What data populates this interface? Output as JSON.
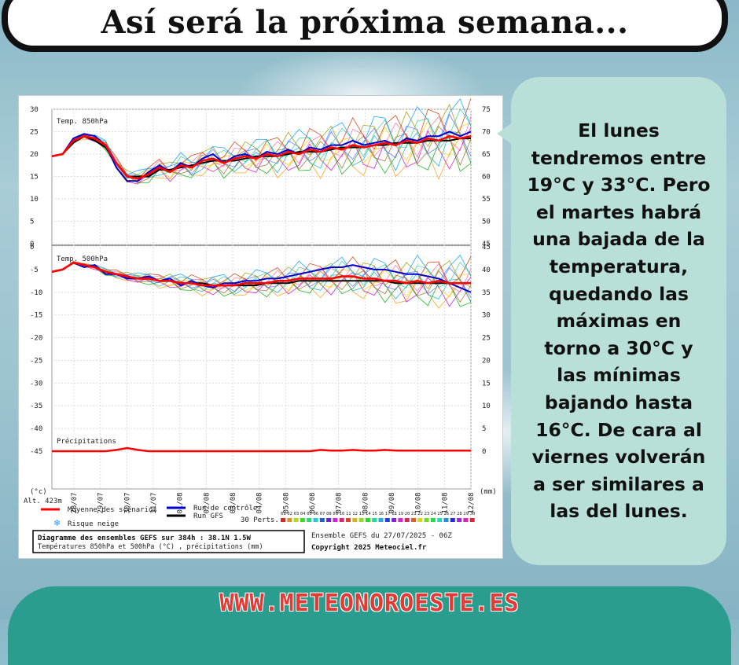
{
  "header": {
    "title": "Así será la próxima semana..."
  },
  "bubble": {
    "lines": [
      "El lunes",
      "tendremos entre",
      "19°C y 33°C. Pero",
      "el martes habrá",
      "una bajada de la",
      "temperatura,",
      "quedando las",
      "máximas en",
      "torno a 30°C y",
      "las mínimas",
      "bajando hasta",
      "16°C. De cara al",
      "viernes volverán",
      "a ser similares a",
      "las del lunes."
    ]
  },
  "footer": {
    "url": "WWW.METEONOROESTE.ES"
  },
  "colors": {
    "bubble": "#b8e0d9",
    "footer": "#2a9d8f",
    "footer_text": "#e53935",
    "mean": "#ff0000",
    "control": "#0000cc",
    "gfs": "#000000"
  },
  "chart_data": {
    "type": "line",
    "panels": [
      {
        "label": "Temp. 850hPa",
        "ylim": [
          0,
          30
        ],
        "left_ticks": [
          "30",
          "25",
          "20",
          "15",
          "10",
          "5",
          "0"
        ],
        "right_ticks": [
          "75",
          "70",
          "65",
          "60",
          "55",
          "50",
          "45"
        ],
        "mean": [
          19.5,
          20,
          23,
          24,
          23.5,
          22,
          18,
          15,
          14.5,
          15.5,
          17,
          16,
          17.5,
          17,
          18.5,
          19,
          18,
          19,
          19.5,
          19,
          20,
          19.5,
          20.5,
          20,
          21,
          20.5,
          21.5,
          21,
          22,
          21.5,
          22,
          22.5,
          22,
          23,
          22.5,
          23.5,
          23,
          24,
          23.5,
          24
        ],
        "control": [
          19.5,
          20,
          23.5,
          24.5,
          24,
          22,
          17,
          14,
          14,
          16,
          17.5,
          16,
          18,
          17,
          19,
          20,
          18,
          19.5,
          20,
          19,
          20.5,
          20,
          21,
          20,
          21.5,
          21,
          22,
          22,
          23,
          22,
          22.5,
          23,
          22,
          23.5,
          23,
          24,
          24,
          25,
          24,
          25
        ],
        "gfs": [
          19.5,
          20,
          22.5,
          24,
          23,
          21.5,
          18,
          15,
          15,
          15,
          16.5,
          16.5,
          17,
          17.5,
          18,
          18.5,
          18.5,
          18.5,
          19,
          19.5,
          19.5,
          19.5,
          20,
          20.5,
          20.5,
          20.5,
          21,
          21.5,
          21.5,
          21.5,
          22,
          22,
          22.5,
          22.5,
          22.5,
          23,
          23,
          23,
          23.5,
          23.5
        ]
      },
      {
        "label": "Temp. 500hPa",
        "ylim": [
          -45,
          0
        ],
        "left_ticks": [
          "0",
          "-5",
          "-10",
          "-15",
          "-20",
          "-25",
          "-30",
          "-35",
          "-40",
          "-45"
        ],
        "right_ticks": [
          "45",
          "40",
          "35",
          "30",
          "25",
          "20",
          "15",
          "10",
          "5",
          "0"
        ],
        "mean": [
          -5.5,
          -5,
          -3.5,
          -4,
          -4.5,
          -5.5,
          -6,
          -6.5,
          -7,
          -7,
          -7.5,
          -7.5,
          -8,
          -8,
          -8.5,
          -8.5,
          -8.5,
          -8.5,
          -8,
          -8,
          -8,
          -7.5,
          -7.5,
          -7,
          -7,
          -7,
          -7,
          -6.5,
          -6.5,
          -7,
          -7,
          -7.5,
          -7.5,
          -8,
          -7.5,
          -8,
          -7.5,
          -8,
          -8,
          -8
        ],
        "control": [
          -5.5,
          -5,
          -3.5,
          -4.5,
          -4,
          -6,
          -6,
          -7,
          -7,
          -6.5,
          -7.5,
          -7,
          -8.5,
          -7.5,
          -8.5,
          -9,
          -8,
          -8,
          -7.5,
          -7.5,
          -7,
          -7,
          -6.5,
          -6,
          -5.5,
          -5,
          -4.5,
          -4.5,
          -4,
          -4.5,
          -5,
          -5,
          -5.5,
          -6,
          -6,
          -6.5,
          -7,
          -8,
          -9,
          -10
        ],
        "gfs": [
          -5.5,
          -5,
          -3.5,
          -4,
          -4.5,
          -5.5,
          -6,
          -6.5,
          -7,
          -7,
          -7.5,
          -7.5,
          -8,
          -8,
          -8,
          -8.5,
          -8.5,
          -8.5,
          -8.5,
          -8.5,
          -8,
          -8,
          -8,
          -7.5,
          -7.5,
          -7.5,
          -7.5,
          -7.5,
          -7.5,
          -7.5,
          -7.5,
          -7.5,
          -8,
          -8,
          -8,
          -8,
          -8,
          -8,
          -8,
          -8
        ],
        "precip_label": "Précipitations",
        "precip_mean": [
          0,
          0,
          0,
          0,
          0,
          0,
          0.2,
          0.5,
          0.2,
          0,
          0,
          0,
          0,
          0,
          0,
          0,
          0,
          0,
          0,
          0,
          0,
          0,
          0,
          0,
          0,
          0.2,
          0.1,
          0.1,
          0.2,
          0.1,
          0.1,
          0.2,
          0.1,
          0.1,
          0.1,
          0.1,
          0.1,
          0.1,
          0.1,
          0.1
        ]
      }
    ],
    "x_labels": [
      "28/07",
      "29/07",
      "30/07",
      "31/07",
      "01/08",
      "02/08",
      "03/08",
      "04/08",
      "05/08",
      "06/08",
      "07/08",
      "08/08",
      "09/08",
      "10/08",
      "11/08",
      "12/08"
    ],
    "left_unit": "(°c)",
    "right_unit": "(mm)",
    "altitude": "Alt. 423m",
    "legend": [
      {
        "name": "Moyenne des scénarios",
        "color": "#ff0000"
      },
      {
        "name": "Run de contrôle",
        "color": "#0000cc"
      },
      {
        "name": "Run GFS",
        "color": "#000000"
      },
      {
        "name": "Risque neige",
        "color": "#3399ff"
      }
    ],
    "perts_label": "30 Perts.",
    "perts_numbers": [
      "01",
      "02",
      "03",
      "04",
      "05",
      "06",
      "07",
      "08",
      "09",
      "10",
      "11",
      "12",
      "13",
      "14",
      "15",
      "16",
      "17",
      "18",
      "19",
      "20",
      "21",
      "22",
      "23",
      "24",
      "25",
      "26",
      "27",
      "28",
      "29",
      "30"
    ],
    "box_title": "Diagramme des ensembles GEFS sur 384h : 38.1N 1.5W",
    "box_subtitle": "Températures 850hPa et 500hPa (°C) , précipitations (mm)",
    "run_info": "Ensemble GEFS du 27/07/2025 - 06Z",
    "copyright": "Copyright 2025 Meteociel.fr"
  }
}
